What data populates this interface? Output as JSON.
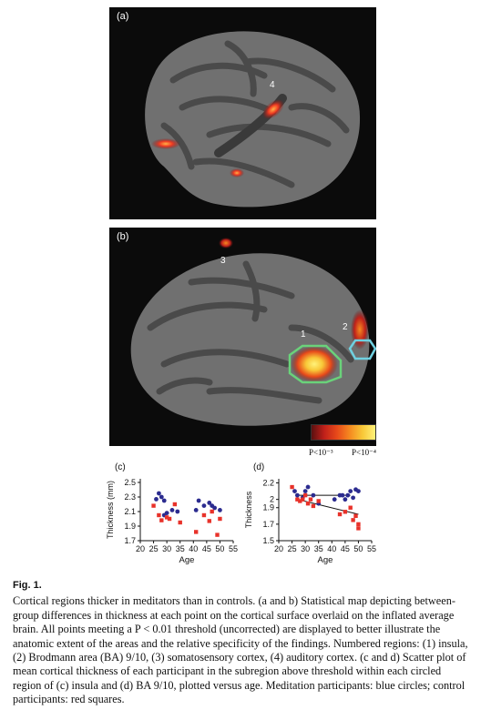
{
  "panels": {
    "a": {
      "label": "(a)",
      "regions": [
        "4"
      ]
    },
    "b": {
      "label": "(b)",
      "regions": [
        "3",
        "1",
        "2"
      ]
    }
  },
  "colorbar": {
    "low_label": "P<10⁻³",
    "high_label": "P<10⁻⁴"
  },
  "colors": {
    "meditation": "#2b2b8f",
    "control": "#e8322a",
    "insula_outline": "#6ad27a",
    "ba910_outline": "#6fd0e0"
  },
  "chart_data": [
    {
      "type": "scatter",
      "panel_label": "(c)",
      "xlabel": "Age",
      "ylabel": "Thickness (mm)",
      "xlim": [
        20,
        55
      ],
      "ylim": [
        1.7,
        2.55
      ],
      "xticks": [
        20,
        25,
        30,
        35,
        40,
        45,
        50,
        55
      ],
      "yticks": [
        "1.7",
        "1.9",
        "2.1",
        "2.3",
        "2.5"
      ],
      "series": [
        {
          "name": "Meditation participants",
          "marker": "circle",
          "x": [
            26,
            27,
            28,
            29,
            29,
            30,
            32,
            34,
            41,
            42,
            44,
            46,
            47,
            48,
            50
          ],
          "y": [
            2.27,
            2.35,
            2.3,
            2.05,
            2.25,
            2.08,
            2.12,
            2.1,
            2.12,
            2.25,
            2.18,
            2.22,
            2.18,
            2.15,
            2.12
          ]
        },
        {
          "name": "Control participants",
          "marker": "square",
          "x": [
            25,
            27,
            28,
            30,
            31,
            33,
            35,
            41,
            44,
            46,
            47,
            49,
            50
          ],
          "y": [
            2.18,
            2.05,
            1.98,
            2.02,
            2.0,
            2.2,
            1.95,
            1.82,
            2.05,
            1.97,
            2.1,
            1.78,
            2.0
          ]
        }
      ]
    },
    {
      "type": "scatter",
      "panel_label": "(d)",
      "xlabel": "Age",
      "ylabel": "Thickness",
      "xlim": [
        20,
        55
      ],
      "ylim": [
        1.5,
        2.25
      ],
      "xticks": [
        20,
        25,
        30,
        35,
        40,
        45,
        50,
        55
      ],
      "yticks": [
        "1.5",
        "1.7",
        "1.9",
        "2",
        "2.2"
      ],
      "trend_lines": [
        {
          "series": "Meditation participants",
          "x": [
            27,
            47
          ],
          "y": [
            2.05,
            2.05
          ]
        },
        {
          "series": "Control participants",
          "x": [
            27,
            50
          ],
          "y": [
            2.0,
            1.82
          ]
        }
      ],
      "series": [
        {
          "name": "Meditation participants",
          "marker": "circle",
          "x": [
            26,
            27,
            29,
            30,
            31,
            33,
            35,
            41,
            43,
            44,
            45,
            46,
            47,
            48,
            49,
            50
          ],
          "y": [
            2.1,
            2.05,
            2.02,
            2.1,
            2.15,
            2.05,
            1.95,
            2.0,
            2.05,
            2.05,
            2.0,
            2.05,
            2.1,
            2.02,
            2.12,
            2.1
          ]
        },
        {
          "name": "Control participants",
          "marker": "square",
          "x": [
            25,
            27,
            28,
            29,
            30,
            31,
            32,
            33,
            35,
            43,
            45,
            47,
            48,
            49,
            50,
            50
          ],
          "y": [
            2.15,
            2.0,
            1.98,
            2.0,
            2.05,
            1.95,
            2.0,
            1.92,
            1.98,
            1.82,
            1.85,
            1.9,
            1.75,
            1.8,
            1.7,
            1.65
          ]
        }
      ]
    }
  ],
  "caption": {
    "fig_label": "Fig. 1.",
    "text": "Cortical regions thicker in meditators than in controls. (a and b) Statistical map depicting between-group differences in thickness at each point on the cortical surface overlaid on the inflated average brain. All points meeting a P < 0.01 threshold (uncorrected) are displayed to better illustrate the anatomic extent of the areas and the relative specificity of the findings. Numbered regions: (1) insula, (2) Brodmann area (BA) 9/10, (3) somatosensory cortex, (4) auditory cortex. (c and d) Scatter plot of mean cortical thickness of each participant in the subregion above threshold within each circled region of (c) insula and (d) BA 9/10, plotted versus age. Meditation participants: blue circles; control participants: red squares."
  }
}
